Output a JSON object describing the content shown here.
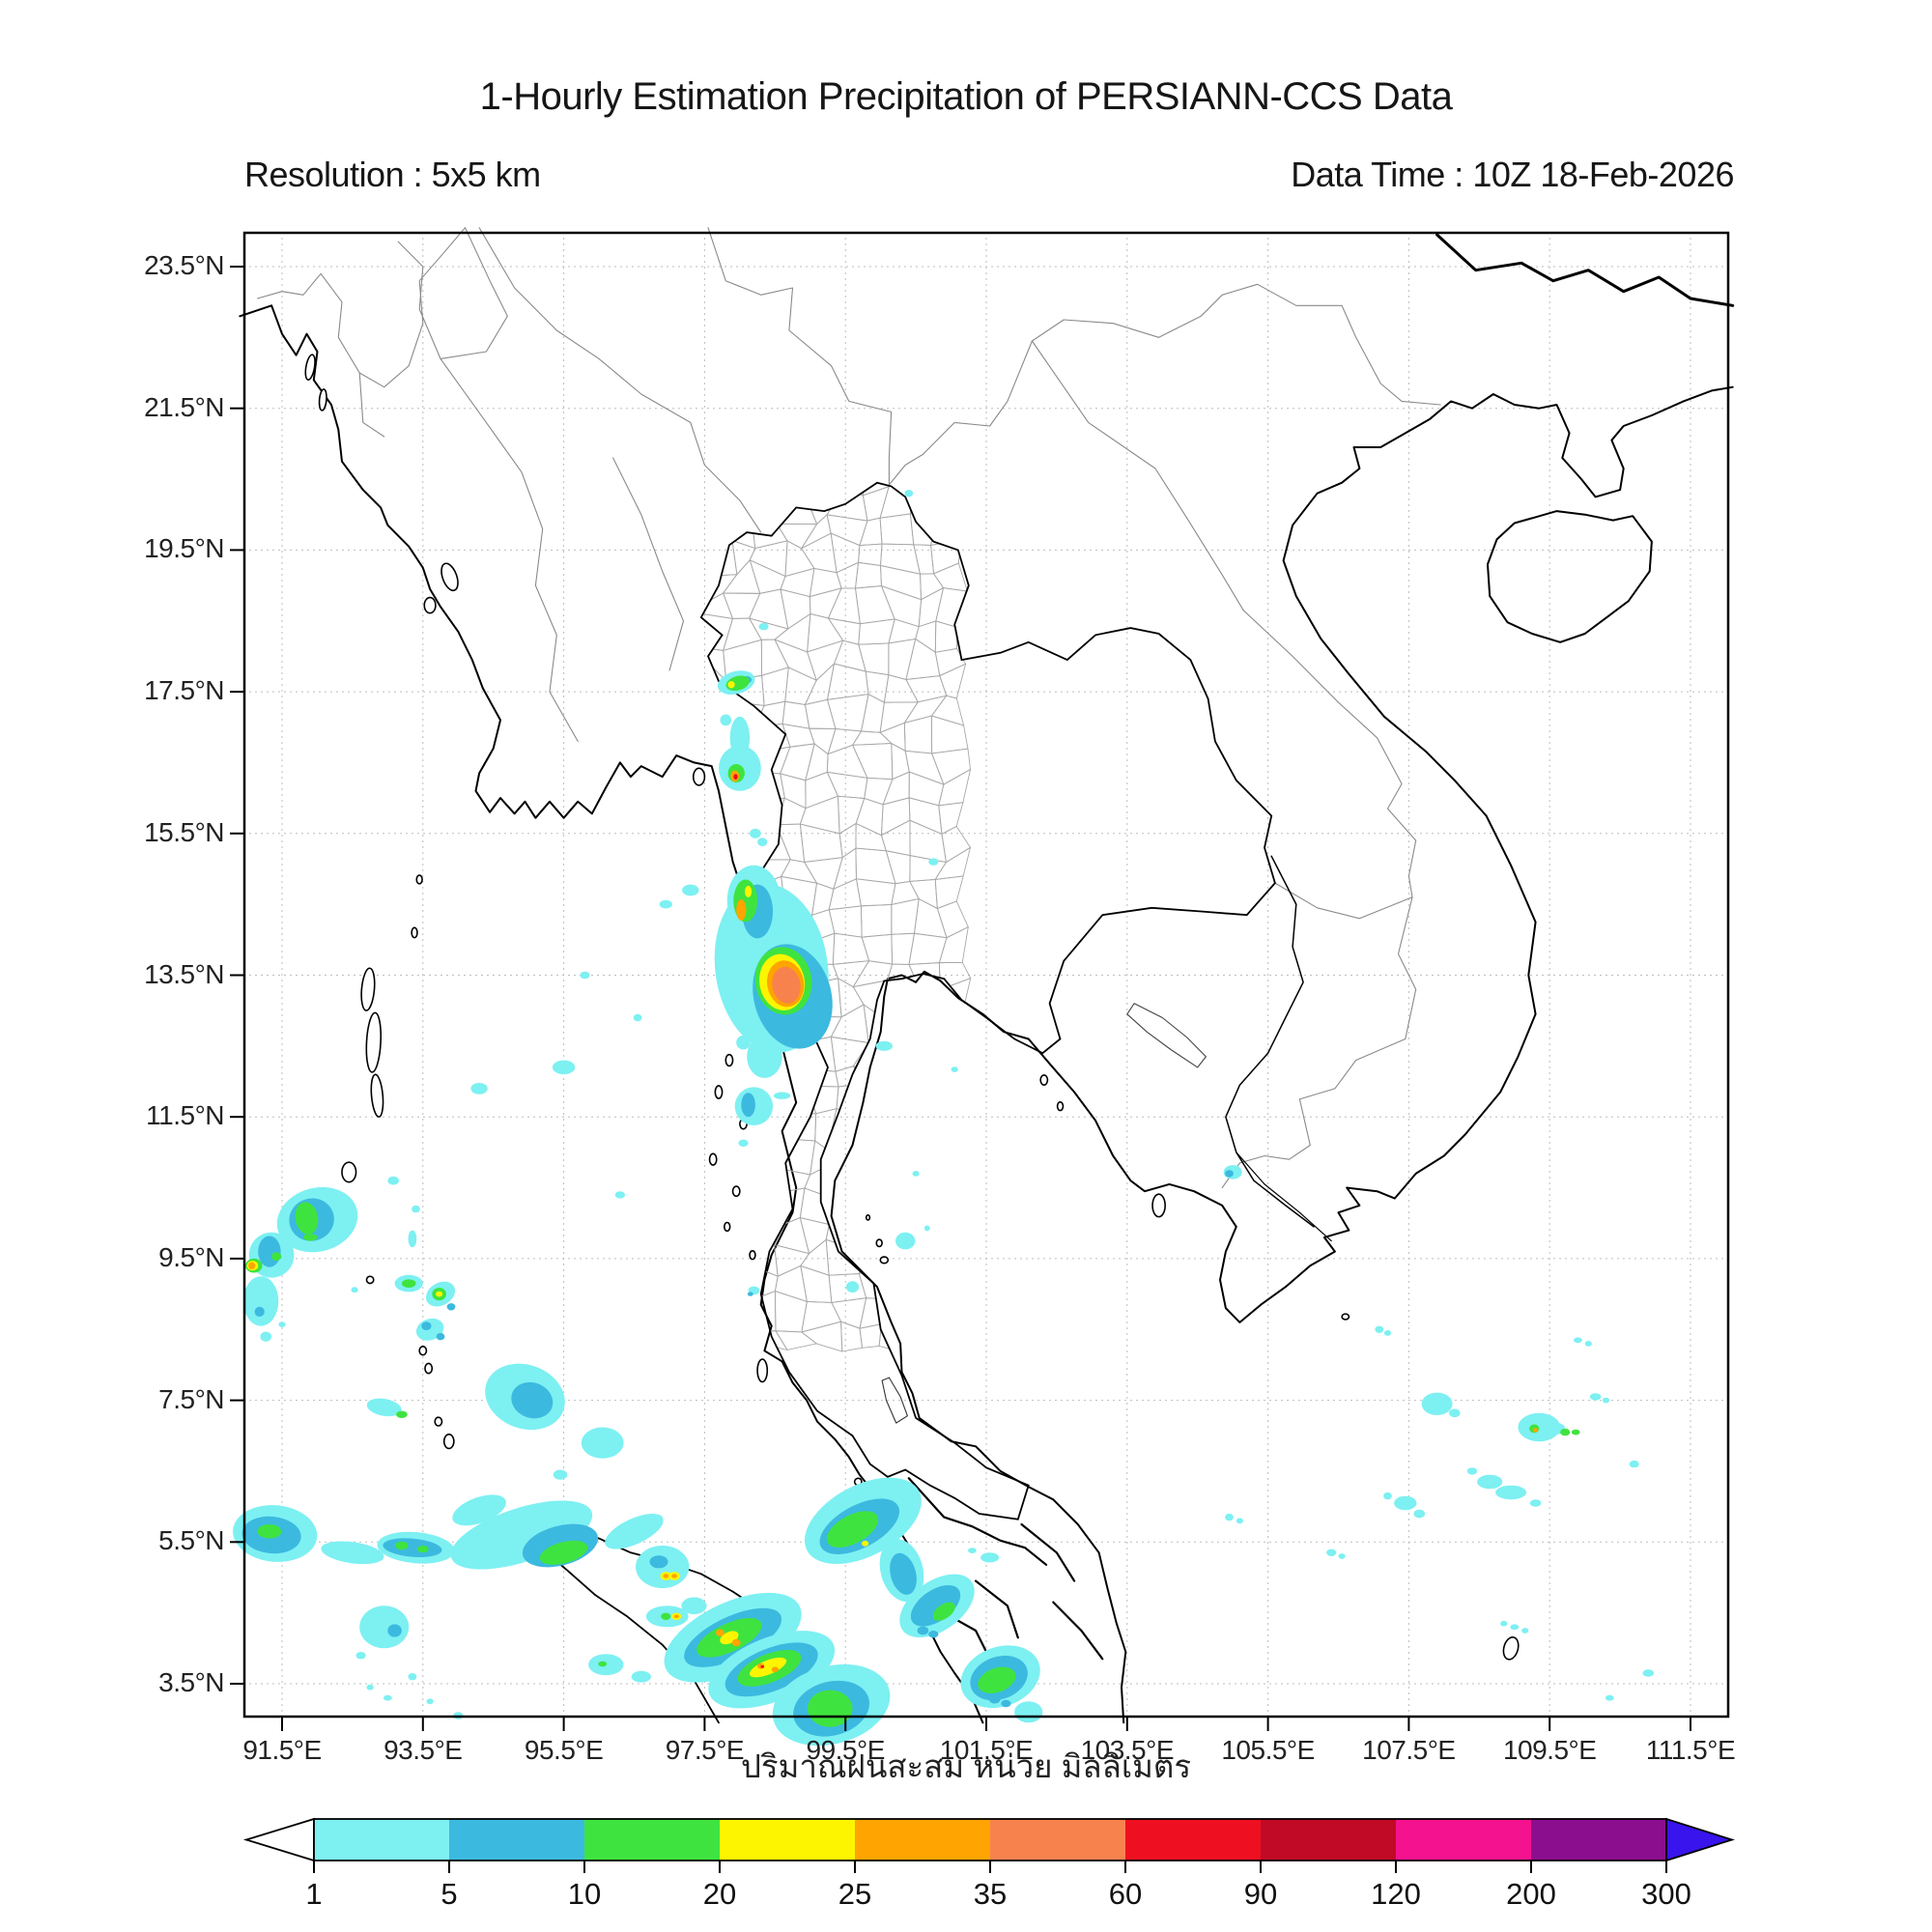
{
  "header": {
    "title": "1-Hourly Estimation Precipitation of PERSIANN-CCS Data",
    "resolution_label": "Resolution : 5x5 km",
    "datatime_label": "Data Time : 10Z 18-Feb-2026"
  },
  "axes": {
    "lat_tick_labels": [
      "23.5°N",
      "21.5°N",
      "19.5°N",
      "17.5°N",
      "15.5°N",
      "13.5°N",
      "11.5°N",
      "9.5°N",
      "7.5°N",
      "5.5°N",
      "3.5°N"
    ],
    "lat_tick_values": [
      23.5,
      21.5,
      19.5,
      17.5,
      15.5,
      13.5,
      11.5,
      9.5,
      7.5,
      5.5,
      3.5
    ],
    "lon_tick_labels": [
      "91.5°E",
      "93.5°E",
      "95.5°E",
      "97.5°E",
      "99.5°E",
      "101.5°E",
      "103.5°E",
      "105.5°E",
      "107.5°E",
      "109.5°E",
      "111.5°E"
    ],
    "lon_tick_values": [
      91.5,
      93.5,
      95.5,
      97.5,
      99.5,
      101.5,
      103.5,
      105.5,
      107.5,
      109.5,
      111.5
    ]
  },
  "colorbar": {
    "caption_thai": "ปริมาณฝนสะสม หน่วย มิลลิเมตร",
    "tick_labels": [
      "1",
      "5",
      "10",
      "20",
      "25",
      "35",
      "60",
      "90",
      "120",
      "200",
      "300"
    ],
    "segment_colors": [
      "#7DF0F2",
      "#3CB9DF",
      "#3FE33F",
      "#FDF500",
      "#FFA400",
      "#F8824D",
      "#EE1020",
      "#C00A26",
      "#F5128F",
      "#8B0E8F"
    ],
    "underflow_color": "#FFFFFF",
    "overflow_color": "#3914EC"
  },
  "chart_data": {
    "type": "map",
    "title": "1-Hourly Estimation Precipitation of PERSIANN-CCS Data",
    "units": "mm",
    "lon_range": [
      91.0,
      112.0
    ],
    "lat_range": [
      3.0,
      24.0
    ],
    "thresholds_mm": [
      1,
      5,
      10,
      20,
      25,
      35,
      60,
      90,
      120,
      200,
      300
    ],
    "precip_cells": [
      [
        98.45,
        13.6,
        0.8,
        1.2,
        -8,
        0
      ],
      [
        98.2,
        14.55,
        0.38,
        0.5,
        0,
        0
      ],
      [
        98.35,
        12.35,
        0.25,
        0.3,
        0,
        0
      ],
      [
        98.75,
        13.2,
        0.55,
        0.75,
        -15,
        1
      ],
      [
        98.25,
        14.4,
        0.22,
        0.38,
        0,
        1
      ],
      [
        98.08,
        14.55,
        0.17,
        0.3,
        0,
        2
      ],
      [
        98.12,
        14.68,
        0.05,
        0.08,
        0,
        3
      ],
      [
        98.02,
        14.42,
        0.07,
        0.15,
        0,
        4
      ],
      [
        98.62,
        13.42,
        0.4,
        0.48,
        -10,
        2
      ],
      [
        98.6,
        13.4,
        0.32,
        0.4,
        -10,
        3
      ],
      [
        98.65,
        13.38,
        0.26,
        0.33,
        -10,
        4
      ],
      [
        98.66,
        13.36,
        0.2,
        0.26,
        -10,
        5
      ],
      [
        98.0,
        16.42,
        0.3,
        0.32,
        0,
        0
      ],
      [
        97.95,
        16.35,
        0.12,
        0.13,
        0,
        2
      ],
      [
        97.93,
        16.31,
        0.06,
        0.08,
        0,
        4
      ],
      [
        97.94,
        16.3,
        0.03,
        0.04,
        0,
        6
      ],
      [
        98.0,
        16.85,
        0.14,
        0.3,
        0,
        0
      ],
      [
        97.8,
        17.1,
        0.08,
        0.08,
        0,
        0
      ],
      [
        97.95,
        17.63,
        0.27,
        0.16,
        -15,
        0
      ],
      [
        98.1,
        17.67,
        0.07,
        0.05,
        0,
        1
      ],
      [
        97.97,
        17.62,
        0.17,
        0.1,
        -15,
        2
      ],
      [
        97.88,
        17.6,
        0.05,
        0.05,
        0,
        3
      ],
      [
        98.22,
        15.5,
        0.08,
        0.07,
        0,
        0
      ],
      [
        98.32,
        15.38,
        0.07,
        0.06,
        0,
        0
      ],
      [
        98.34,
        18.42,
        0.07,
        0.05,
        0,
        0
      ],
      [
        100.4,
        20.3,
        0.06,
        0.05,
        0,
        0
      ],
      [
        98.2,
        11.65,
        0.27,
        0.27,
        0,
        0
      ],
      [
        98.12,
        11.67,
        0.1,
        0.17,
        0,
        1
      ],
      [
        98.6,
        11.8,
        0.12,
        0.05,
        0,
        0
      ],
      [
        98.05,
        12.55,
        0.1,
        0.1,
        0,
        0
      ],
      [
        98.05,
        11.13,
        0.07,
        0.05,
        0,
        0
      ],
      [
        98.2,
        9.05,
        0.08,
        0.06,
        0,
        0
      ],
      [
        98.15,
        9.0,
        0.04,
        0.03,
        0,
        1
      ],
      [
        100.05,
        12.5,
        0.12,
        0.07,
        0,
        0
      ],
      [
        101.05,
        12.17,
        0.05,
        0.04,
        0,
        0
      ],
      [
        100.5,
        10.7,
        0.05,
        0.04,
        0,
        0
      ],
      [
        100.35,
        9.75,
        0.14,
        0.12,
        0,
        0
      ],
      [
        100.66,
        9.93,
        0.04,
        0.04,
        0,
        0
      ],
      [
        99.6,
        9.1,
        0.09,
        0.08,
        0,
        0
      ],
      [
        100.75,
        15.1,
        0.07,
        0.05,
        0,
        0
      ],
      [
        95.5,
        12.2,
        0.16,
        0.1,
        0,
        0
      ],
      [
        94.3,
        11.9,
        0.12,
        0.08,
        0,
        0
      ],
      [
        93.08,
        10.6,
        0.08,
        0.06,
        0,
        0
      ],
      [
        93.4,
        10.2,
        0.06,
        0.05,
        0,
        0
      ],
      [
        93.35,
        9.78,
        0.06,
        0.12,
        0,
        0
      ],
      [
        92.0,
        10.05,
        0.58,
        0.45,
        -15,
        0
      ],
      [
        91.92,
        10.05,
        0.32,
        0.3,
        -15,
        1
      ],
      [
        91.85,
        10.07,
        0.16,
        0.23,
        -10,
        2
      ],
      [
        91.9,
        9.8,
        0.1,
        0.05,
        0,
        2
      ],
      [
        91.35,
        9.55,
        0.32,
        0.32,
        0,
        0
      ],
      [
        91.32,
        9.6,
        0.16,
        0.22,
        0,
        1
      ],
      [
        91.42,
        9.53,
        0.07,
        0.06,
        0,
        2
      ],
      [
        91.1,
        9.4,
        0.12,
        0.1,
        0,
        2
      ],
      [
        91.08,
        9.4,
        0.08,
        0.07,
        0,
        3
      ],
      [
        91.07,
        9.4,
        0.05,
        0.05,
        0,
        4
      ],
      [
        91.2,
        8.9,
        0.25,
        0.35,
        0,
        0
      ],
      [
        91.18,
        8.75,
        0.07,
        0.07,
        0,
        1
      ],
      [
        91.27,
        8.4,
        0.08,
        0.07,
        0,
        0
      ],
      [
        91.5,
        8.57,
        0.05,
        0.04,
        0,
        0
      ],
      [
        92.53,
        9.06,
        0.05,
        0.04,
        0,
        0
      ],
      [
        93.3,
        9.15,
        0.2,
        0.12,
        0,
        0
      ],
      [
        93.3,
        9.15,
        0.1,
        0.06,
        0,
        2
      ],
      [
        93.75,
        9.0,
        0.22,
        0.16,
        -30,
        0
      ],
      [
        93.73,
        9.0,
        0.1,
        0.09,
        0,
        2
      ],
      [
        93.73,
        9.0,
        0.05,
        0.04,
        0,
        3
      ],
      [
        93.9,
        8.82,
        0.06,
        0.05,
        0,
        1
      ],
      [
        93.6,
        8.5,
        0.2,
        0.15,
        -20,
        0
      ],
      [
        93.55,
        8.55,
        0.07,
        0.06,
        0,
        1
      ],
      [
        93.75,
        8.4,
        0.06,
        0.05,
        0,
        1
      ],
      [
        92.95,
        7.4,
        0.25,
        0.12,
        10,
        0
      ],
      [
        93.2,
        7.3,
        0.08,
        0.05,
        0,
        2
      ],
      [
        94.95,
        7.55,
        0.58,
        0.45,
        20,
        0
      ],
      [
        95.05,
        7.5,
        0.3,
        0.25,
        20,
        1
      ],
      [
        96.05,
        6.9,
        0.3,
        0.22,
        0,
        0
      ],
      [
        95.45,
        6.45,
        0.1,
        0.07,
        0,
        0
      ],
      [
        96.3,
        10.4,
        0.07,
        0.05,
        0,
        0
      ],
      [
        95.8,
        13.5,
        0.07,
        0.05,
        0,
        0
      ],
      [
        96.55,
        12.9,
        0.06,
        0.05,
        0,
        0
      ],
      [
        97.3,
        14.7,
        0.12,
        0.08,
        0,
        0
      ],
      [
        96.95,
        14.5,
        0.09,
        0.06,
        0,
        0
      ],
      [
        91.4,
        5.62,
        0.6,
        0.4,
        5,
        0
      ],
      [
        91.35,
        5.6,
        0.42,
        0.26,
        5,
        1
      ],
      [
        91.32,
        5.65,
        0.17,
        0.1,
        0,
        2
      ],
      [
        92.5,
        5.35,
        0.45,
        0.15,
        8,
        0
      ],
      [
        93.4,
        5.42,
        0.55,
        0.22,
        5,
        0
      ],
      [
        93.35,
        5.42,
        0.42,
        0.13,
        5,
        1
      ],
      [
        93.2,
        5.45,
        0.09,
        0.06,
        0,
        2
      ],
      [
        93.5,
        5.4,
        0.08,
        0.05,
        0,
        2
      ],
      [
        94.05,
        5.32,
        0.09,
        0.07,
        0,
        3
      ],
      [
        94.05,
        5.32,
        0.05,
        0.04,
        0,
        4
      ],
      [
        94.9,
        5.6,
        1.05,
        0.38,
        -18,
        0
      ],
      [
        94.3,
        5.95,
        0.4,
        0.18,
        -20,
        0
      ],
      [
        95.45,
        5.45,
        0.55,
        0.28,
        -15,
        1
      ],
      [
        95.5,
        5.35,
        0.35,
        0.15,
        -15,
        2
      ],
      [
        96.5,
        5.65,
        0.45,
        0.18,
        -25,
        0
      ],
      [
        96.9,
        5.15,
        0.38,
        0.3,
        0,
        0
      ],
      [
        96.85,
        5.22,
        0.13,
        0.09,
        0,
        1
      ],
      [
        96.95,
        5.02,
        0.08,
        0.06,
        0,
        3
      ],
      [
        97.07,
        5.02,
        0.08,
        0.06,
        0,
        3
      ],
      [
        96.95,
        5.02,
        0.04,
        0.03,
        0,
        4
      ],
      [
        97.07,
        5.02,
        0.04,
        0.03,
        0,
        4
      ],
      [
        96.97,
        4.45,
        0.3,
        0.15,
        0,
        0
      ],
      [
        96.95,
        4.45,
        0.07,
        0.05,
        0,
        2
      ],
      [
        97.1,
        4.45,
        0.07,
        0.05,
        0,
        3
      ],
      [
        97.1,
        4.45,
        0.035,
        0.025,
        0,
        4
      ],
      [
        97.35,
        4.6,
        0.18,
        0.12,
        0,
        0
      ],
      [
        97.9,
        4.15,
        1.05,
        0.5,
        -25,
        0
      ],
      [
        97.9,
        4.15,
        0.75,
        0.3,
        -25,
        1
      ],
      [
        97.85,
        4.15,
        0.5,
        0.2,
        -25,
        2
      ],
      [
        97.85,
        4.15,
        0.14,
        0.08,
        -25,
        3
      ],
      [
        97.72,
        4.22,
        0.06,
        0.05,
        0,
        4
      ],
      [
        97.95,
        4.08,
        0.06,
        0.05,
        0,
        4
      ],
      [
        98.45,
        3.7,
        0.95,
        0.45,
        -22,
        0
      ],
      [
        98.45,
        3.7,
        0.7,
        0.3,
        -22,
        1
      ],
      [
        98.42,
        3.72,
        0.48,
        0.2,
        -22,
        2
      ],
      [
        98.4,
        3.73,
        0.28,
        0.1,
        -22,
        3
      ],
      [
        98.3,
        3.75,
        0.05,
        0.04,
        0,
        4
      ],
      [
        98.5,
        3.7,
        0.05,
        0.04,
        0,
        4
      ],
      [
        98.32,
        3.74,
        0.025,
        0.02,
        0,
        6
      ],
      [
        99.3,
        3.2,
        0.85,
        0.55,
        -15,
        0
      ],
      [
        99.3,
        3.15,
        0.55,
        0.38,
        -15,
        1
      ],
      [
        99.28,
        3.15,
        0.32,
        0.26,
        0,
        2
      ],
      [
        96.1,
        3.77,
        0.25,
        0.15,
        0,
        0
      ],
      [
        96.05,
        3.78,
        0.06,
        0.04,
        0,
        2
      ],
      [
        96.6,
        3.6,
        0.14,
        0.08,
        0,
        0
      ],
      [
        92.95,
        4.3,
        0.35,
        0.3,
        0,
        0
      ],
      [
        93.1,
        4.25,
        0.1,
        0.09,
        0,
        1
      ],
      [
        92.62,
        3.9,
        0.07,
        0.05,
        0,
        0
      ],
      [
        93.35,
        3.6,
        0.06,
        0.05,
        0,
        0
      ],
      [
        93.0,
        3.3,
        0.06,
        0.04,
        0,
        0
      ],
      [
        93.6,
        3.25,
        0.05,
        0.04,
        0,
        0
      ],
      [
        92.75,
        3.45,
        0.05,
        0.04,
        0,
        0
      ],
      [
        94.0,
        3.05,
        0.07,
        0.05,
        0,
        0
      ],
      [
        99.75,
        5.8,
        0.9,
        0.5,
        -28,
        0
      ],
      [
        99.7,
        5.72,
        0.62,
        0.3,
        -28,
        1
      ],
      [
        99.6,
        5.68,
        0.4,
        0.2,
        -28,
        2
      ],
      [
        99.78,
        5.48,
        0.05,
        0.04,
        0,
        3
      ],
      [
        100.3,
        5.1,
        0.3,
        0.45,
        -15,
        0
      ],
      [
        100.32,
        5.05,
        0.18,
        0.3,
        -15,
        1
      ],
      [
        100.8,
        4.6,
        0.6,
        0.35,
        -35,
        0
      ],
      [
        100.78,
        4.6,
        0.4,
        0.22,
        -35,
        1
      ],
      [
        100.9,
        4.52,
        0.18,
        0.1,
        -35,
        2
      ],
      [
        100.6,
        4.25,
        0.08,
        0.06,
        0,
        1
      ],
      [
        100.75,
        4.2,
        0.07,
        0.05,
        0,
        1
      ],
      [
        101.7,
        3.6,
        0.58,
        0.42,
        -20,
        0
      ],
      [
        101.68,
        3.58,
        0.42,
        0.3,
        -20,
        1
      ],
      [
        101.65,
        3.55,
        0.28,
        0.17,
        -20,
        2
      ],
      [
        101.62,
        3.28,
        0.08,
        0.06,
        0,
        1
      ],
      [
        101.78,
        3.22,
        0.07,
        0.05,
        0,
        1
      ],
      [
        102.1,
        3.1,
        0.2,
        0.15,
        0,
        0
      ],
      [
        101.55,
        5.28,
        0.13,
        0.07,
        0,
        0
      ],
      [
        101.3,
        5.38,
        0.06,
        0.04,
        0,
        0
      ],
      [
        105.0,
        10.72,
        0.13,
        0.1,
        0,
        0
      ],
      [
        104.95,
        10.7,
        0.06,
        0.05,
        0,
        1
      ],
      [
        107.9,
        7.45,
        0.22,
        0.16,
        0,
        0
      ],
      [
        108.15,
        7.32,
        0.08,
        0.06,
        0,
        0
      ],
      [
        109.35,
        7.12,
        0.3,
        0.2,
        0,
        0
      ],
      [
        109.6,
        7.1,
        0.12,
        0.08,
        0,
        0
      ],
      [
        109.28,
        7.1,
        0.07,
        0.06,
        0,
        2
      ],
      [
        109.3,
        7.08,
        0.04,
        0.03,
        0,
        4
      ],
      [
        109.72,
        7.05,
        0.07,
        0.05,
        0,
        2
      ],
      [
        109.87,
        7.05,
        0.06,
        0.04,
        0,
        2
      ],
      [
        110.15,
        7.55,
        0.08,
        0.05,
        0,
        0
      ],
      [
        110.3,
        7.5,
        0.05,
        0.04,
        0,
        0
      ],
      [
        108.65,
        6.35,
        0.18,
        0.1,
        0,
        0
      ],
      [
        108.95,
        6.2,
        0.22,
        0.1,
        0,
        0
      ],
      [
        109.3,
        6.05,
        0.08,
        0.05,
        0,
        0
      ],
      [
        108.4,
        6.5,
        0.07,
        0.05,
        0,
        0
      ],
      [
        107.45,
        6.05,
        0.16,
        0.1,
        0,
        0
      ],
      [
        107.65,
        5.9,
        0.08,
        0.06,
        0,
        0
      ],
      [
        107.2,
        6.15,
        0.06,
        0.05,
        0,
        0
      ],
      [
        106.4,
        5.35,
        0.07,
        0.05,
        0,
        0
      ],
      [
        106.55,
        5.3,
        0.05,
        0.04,
        0,
        0
      ],
      [
        104.95,
        5.85,
        0.06,
        0.05,
        0,
        0
      ],
      [
        105.1,
        5.8,
        0.05,
        0.04,
        0,
        0
      ],
      [
        110.7,
        6.6,
        0.07,
        0.05,
        0,
        0
      ],
      [
        109.0,
        4.3,
        0.06,
        0.04,
        0,
        0
      ],
      [
        109.15,
        4.25,
        0.05,
        0.04,
        0,
        0
      ],
      [
        108.85,
        4.35,
        0.05,
        0.04,
        0,
        0
      ],
      [
        110.9,
        3.65,
        0.08,
        0.05,
        0,
        0
      ],
      [
        110.35,
        3.3,
        0.06,
        0.04,
        0,
        0
      ],
      [
        107.08,
        8.5,
        0.06,
        0.05,
        0,
        0
      ],
      [
        107.2,
        8.45,
        0.05,
        0.04,
        0,
        0
      ],
      [
        109.9,
        8.35,
        0.06,
        0.04,
        0,
        0
      ],
      [
        110.05,
        8.3,
        0.05,
        0.04,
        0,
        0
      ]
    ]
  }
}
